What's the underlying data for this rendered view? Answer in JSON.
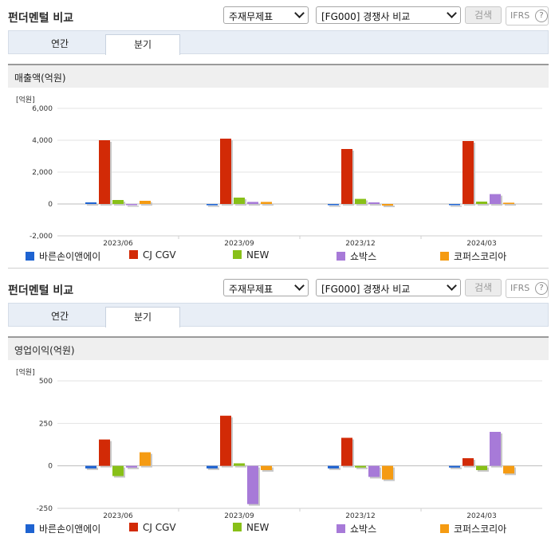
{
  "panels": [
    {
      "title": "펀더멘털 비교",
      "select1": "주재무제표",
      "select2": "[FG000] 경쟁사 비교",
      "search_label": "검색",
      "ifrs_label": "IFRS",
      "ifrs_help": "?",
      "tabs": [
        "연간",
        "분기"
      ],
      "active_tab": "분기",
      "section_title": "매출액(억원)",
      "unit": "[억원]"
    },
    {
      "title": "펀더멘털 비교",
      "select1": "주재무제표",
      "select2": "[FG000] 경쟁사 비교",
      "search_label": "검색",
      "ifrs_label": "IFRS",
      "ifrs_help": "?",
      "tabs": [
        "연간",
        "분기"
      ],
      "active_tab": "분기",
      "section_title": "영업이익(억원)",
      "unit": "[억원]"
    }
  ],
  "legend": [
    {
      "name": "바른손이앤에이",
      "color": "#1e63d1"
    },
    {
      "name": "CJ CGV",
      "color": "#d22a06"
    },
    {
      "name": "NEW",
      "color": "#88c018"
    },
    {
      "name": "쇼박스",
      "color": "#a77ad8"
    },
    {
      "name": "코퍼스코리아",
      "color": "#f59b12"
    }
  ],
  "chart_data": [
    {
      "type": "bar",
      "title": "매출액(억원)",
      "categories": [
        "2023/06",
        "2023/09",
        "2023/12",
        "2024/03"
      ],
      "ylim": [
        -2000,
        6000
      ],
      "yticks": [
        "-2,000",
        "0",
        "2,000",
        "4,000",
        "6,000"
      ],
      "ytick_values": [
        -2000,
        0,
        2000,
        4000,
        6000
      ],
      "series": [
        {
          "name": "바른손이앤에이",
          "values": [
            100,
            -80,
            -60,
            -40
          ]
        },
        {
          "name": "CJ CGV",
          "values": [
            4000,
            4100,
            3450,
            3950
          ]
        },
        {
          "name": "NEW",
          "values": [
            250,
            400,
            320,
            150
          ]
        },
        {
          "name": "쇼박스",
          "values": [
            -60,
            130,
            100,
            620
          ]
        },
        {
          "name": "코퍼스코리아",
          "values": [
            200,
            130,
            -100,
            80
          ]
        }
      ]
    },
    {
      "type": "bar",
      "title": "영업이익(억원)",
      "categories": [
        "2023/06",
        "2023/09",
        "2023/12",
        "2024/03"
      ],
      "ylim": [
        -250,
        500
      ],
      "yticks": [
        "-250",
        "0",
        "250",
        "500"
      ],
      "ytick_values": [
        -250,
        0,
        250,
        500
      ],
      "series": [
        {
          "name": "바른손이앤에이",
          "values": [
            -15,
            -15,
            -15,
            -10
          ]
        },
        {
          "name": "CJ CGV",
          "values": [
            155,
            295,
            165,
            45
          ]
        },
        {
          "name": "NEW",
          "values": [
            -60,
            15,
            -10,
            -25
          ]
        },
        {
          "name": "쇼박스",
          "values": [
            -10,
            -225,
            -65,
            200
          ]
        },
        {
          "name": "코퍼스코리아",
          "values": [
            80,
            -25,
            -80,
            -45
          ]
        }
      ]
    }
  ]
}
